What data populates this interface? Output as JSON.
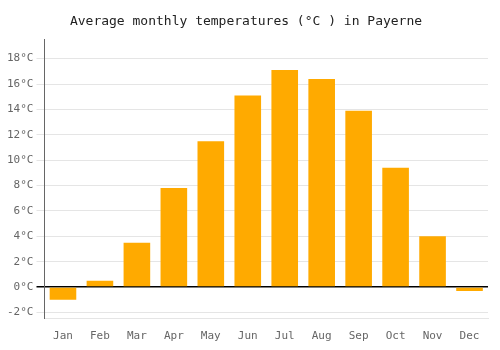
{
  "chart_data": {
    "type": "bar",
    "title": "Average monthly temperatures (°C ) in Payerne",
    "categories": [
      "Jan",
      "Feb",
      "Mar",
      "Apr",
      "May",
      "Jun",
      "Jul",
      "Aug",
      "Sep",
      "Oct",
      "Nov",
      "Dec"
    ],
    "values": [
      -1.0,
      0.5,
      3.5,
      7.8,
      11.5,
      15.1,
      17.1,
      16.4,
      13.9,
      9.4,
      4.0,
      -0.3
    ],
    "color": "#FFAA00",
    "ylim": [
      -2.5,
      19.5
    ],
    "yticks": [
      {
        "value": -2,
        "label": "-2°C"
      },
      {
        "value": 0,
        "label": "0°C"
      },
      {
        "value": 2,
        "label": "2°C"
      },
      {
        "value": 4,
        "label": "4°C"
      },
      {
        "value": 6,
        "label": "6°C"
      },
      {
        "value": 8,
        "label": "8°C"
      },
      {
        "value": 10,
        "label": "10°C"
      },
      {
        "value": 12,
        "label": "12°C"
      },
      {
        "value": 14,
        "label": "14°C"
      },
      {
        "value": 16,
        "label": "16°C"
      },
      {
        "value": 18,
        "label": "18°C"
      }
    ],
    "grid": true
  }
}
